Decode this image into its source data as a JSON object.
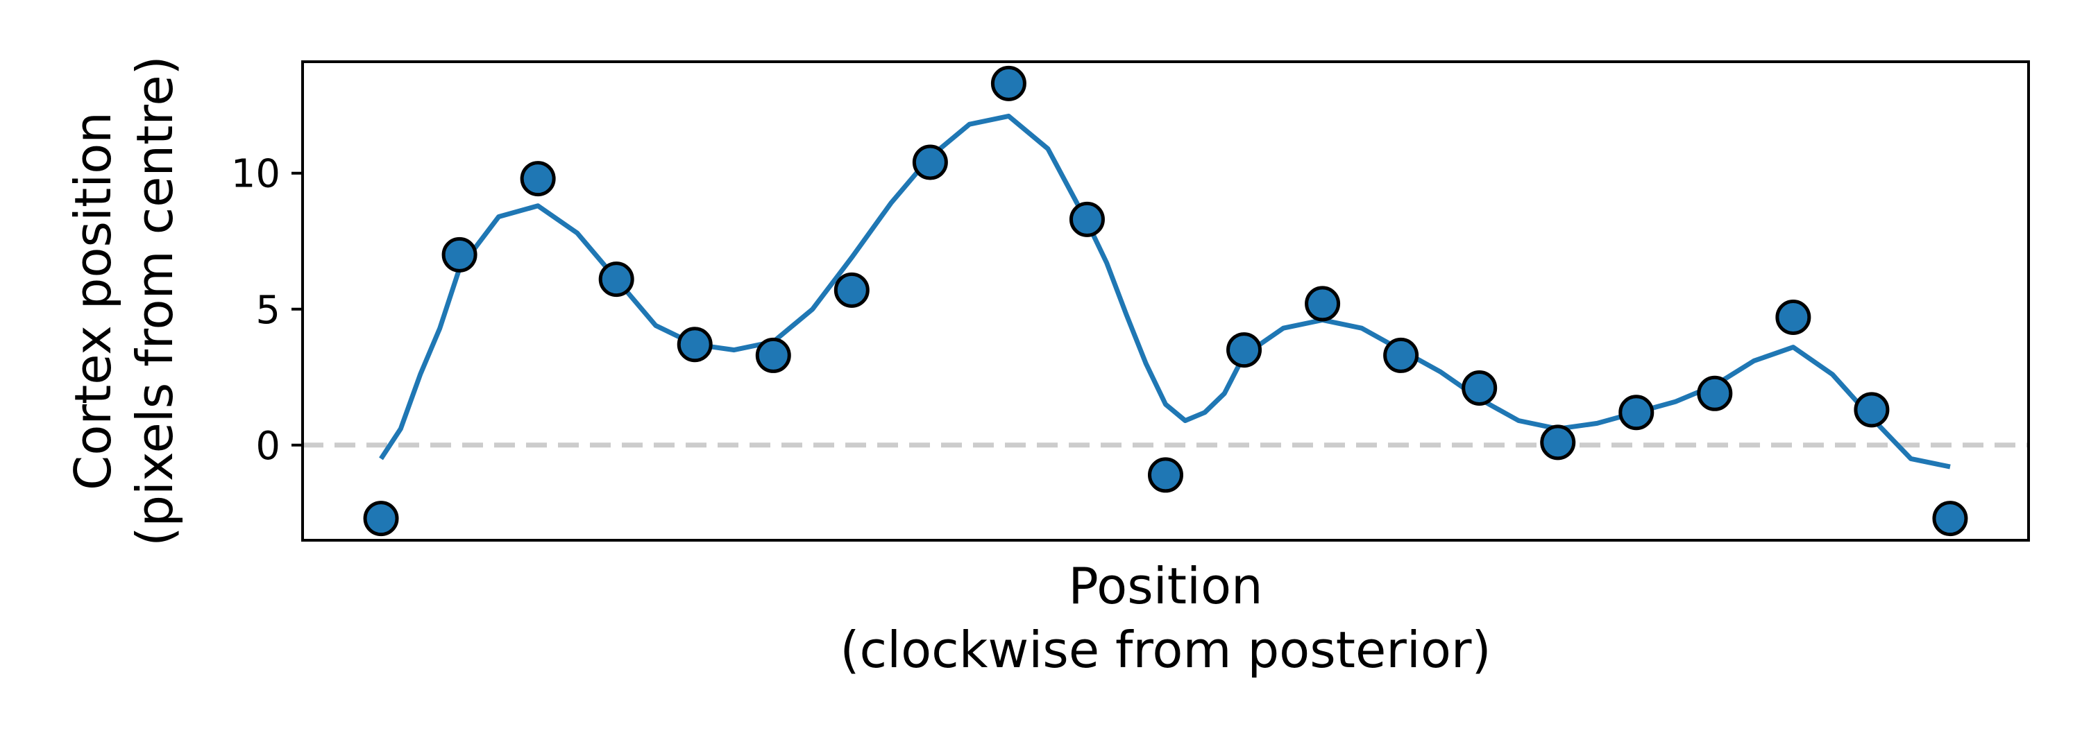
{
  "chart_data": {
    "type": "scatter",
    "title": "",
    "xlabel": [
      "Position",
      "(clockwise from posterior)"
    ],
    "ylabel": [
      "Cortex position",
      "(pixels from centre)"
    ],
    "x_ticks_visible": false,
    "yticks": [
      0,
      5,
      10
    ],
    "ylim": [
      -3.5,
      14.1
    ],
    "xlim": [
      -1,
      21
    ],
    "grid": false,
    "reference_line": {
      "y": 0,
      "style": "dashed",
      "color": "#cccccc"
    },
    "series": [
      {
        "kind": "points",
        "color": "#1f77b4",
        "edge_color": "#000000",
        "x": [
          0,
          1,
          2,
          3,
          4,
          5,
          6,
          7,
          8,
          9,
          10,
          11,
          12,
          13,
          14,
          15,
          16,
          17,
          18,
          19,
          20
        ],
        "y": [
          -2.7,
          7.0,
          9.8,
          6.1,
          3.7,
          3.3,
          5.7,
          10.4,
          13.3,
          8.3,
          -1.1,
          3.5,
          5.2,
          3.3,
          2.1,
          0.1,
          1.2,
          1.9,
          4.7,
          1.3,
          -2.7
        ]
      },
      {
        "kind": "line",
        "color": "#1f77b4",
        "x": [
          0,
          0.25,
          0.5,
          0.75,
          1,
          1.5,
          2,
          2.5,
          3,
          3.5,
          4,
          4.5,
          5,
          5.5,
          6,
          6.5,
          7,
          7.5,
          8,
          8.5,
          9,
          9.25,
          9.5,
          9.75,
          10,
          10.25,
          10.5,
          10.75,
          11,
          11.5,
          12,
          12.5,
          13,
          13.5,
          14,
          14.5,
          15,
          15.5,
          16,
          16.5,
          17,
          17.5,
          18,
          18.5,
          19,
          19.5,
          20
        ],
        "y": [
          -0.5,
          0.6,
          2.6,
          4.3,
          6.5,
          8.4,
          8.8,
          7.8,
          6.1,
          4.4,
          3.7,
          3.5,
          3.8,
          5.0,
          6.9,
          8.9,
          10.6,
          11.8,
          12.1,
          10.9,
          8.2,
          6.7,
          4.8,
          3.0,
          1.5,
          0.9,
          1.2,
          1.9,
          3.3,
          4.3,
          4.6,
          4.3,
          3.5,
          2.7,
          1.7,
          0.9,
          0.6,
          0.8,
          1.2,
          1.6,
          2.2,
          3.1,
          3.6,
          2.6,
          1.0,
          -0.5,
          -0.8
        ]
      }
    ]
  }
}
